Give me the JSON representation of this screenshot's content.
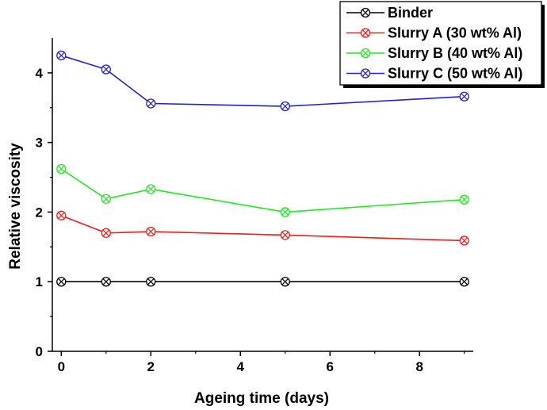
{
  "chart_data": {
    "type": "line",
    "xlabel": "Ageing time (days)",
    "ylabel": "Relative viscosity",
    "xlim": [
      -0.2,
      9.2
    ],
    "ylim": [
      0,
      4.5
    ],
    "x_ticks": [
      0,
      2,
      4,
      6,
      8
    ],
    "y_ticks": [
      0,
      1,
      2,
      3,
      4
    ],
    "grid": false,
    "legend_position": "top-right",
    "x": [
      0,
      1,
      2,
      5,
      9
    ],
    "series": [
      {
        "name": "Binder",
        "color": "#000000",
        "marker": "circle-x",
        "values": [
          1.0,
          1.0,
          1.0,
          1.0,
          1.0
        ]
      },
      {
        "name": "Slurry A (30 wt% Al)",
        "color": "#e8201e",
        "marker": "circle-x",
        "values": [
          1.95,
          1.7,
          1.72,
          1.67,
          1.59
        ]
      },
      {
        "name": "Slurry B (40 wt% Al)",
        "color": "#22e822",
        "marker": "circle-x",
        "values": [
          2.62,
          2.19,
          2.33,
          2.0,
          2.18
        ]
      },
      {
        "name": "Slurry C (50 wt% Al)",
        "color": "#2222cc",
        "marker": "circle-x",
        "values": [
          4.25,
          4.05,
          3.56,
          3.52,
          3.66
        ]
      }
    ]
  }
}
